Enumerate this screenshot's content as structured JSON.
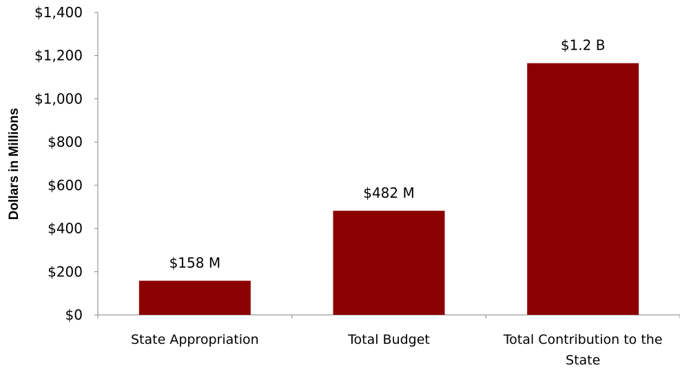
{
  "chart_data": {
    "type": "bar",
    "title": "",
    "xlabel": "",
    "ylabel": "Dollars in Millions",
    "categories": [
      "State Appropriation",
      "Total Budget",
      "Total Contribution to the State"
    ],
    "category_lines": [
      [
        "State Appropriation"
      ],
      [
        "Total Budget"
      ],
      [
        "Total Contribution to the",
        "State"
      ]
    ],
    "values": [
      158,
      482,
      1165
    ],
    "data_labels": [
      "$158 M",
      "$482 M",
      "$1.2 B"
    ],
    "ylim": [
      0,
      1400
    ],
    "y_ticks": [
      0,
      200,
      400,
      600,
      800,
      1000,
      1200,
      1400
    ],
    "y_tick_labels": [
      "$0",
      "$200",
      "$400",
      "$600",
      "$800",
      "$1,000",
      "$1,200",
      "$1,400"
    ],
    "grid": false,
    "legend": "none",
    "colors": {
      "bar": "#8B0000",
      "axis": "#808080",
      "text": "#000000"
    }
  }
}
